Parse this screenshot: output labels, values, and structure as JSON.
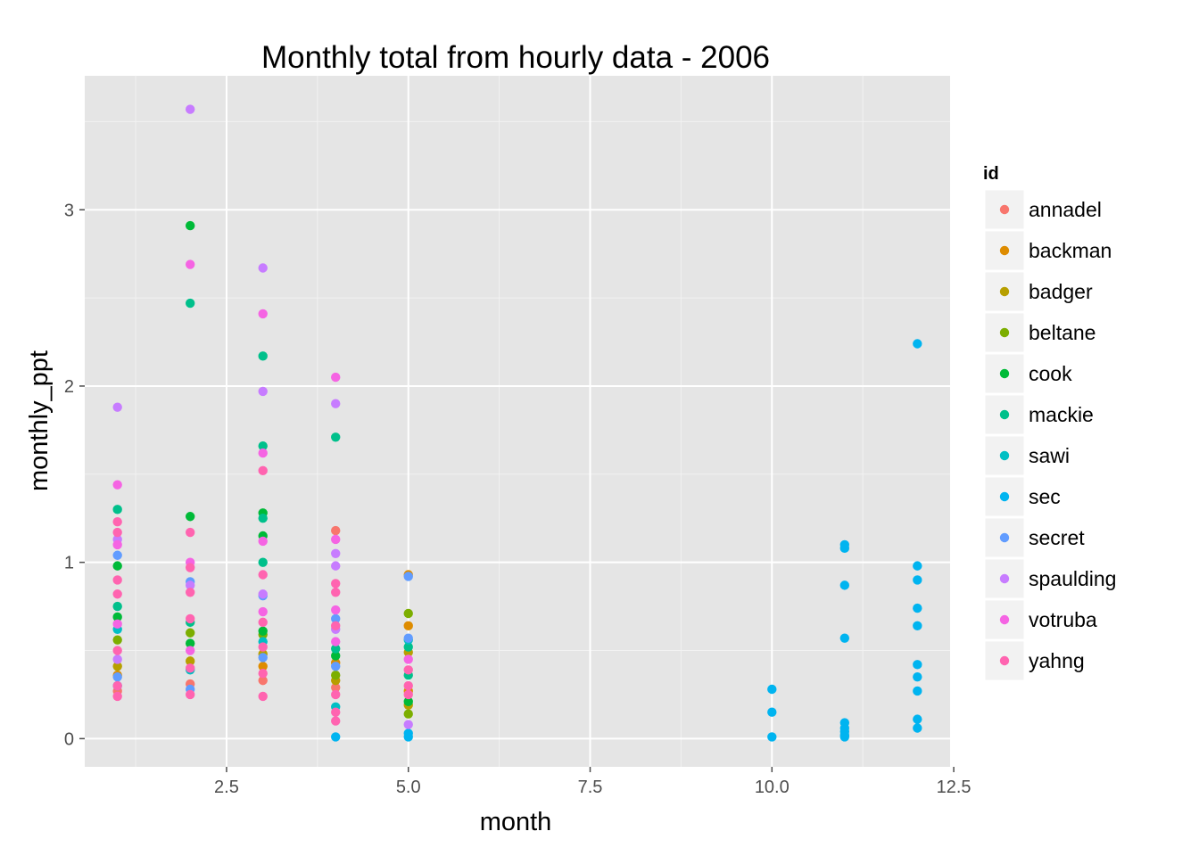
{
  "chart_data": {
    "type": "scatter",
    "title": "Monthly total from hourly data - 2006",
    "xlabel": "month",
    "ylabel": "monthly_ppt",
    "xlim": [
      0.55,
      12.45
    ],
    "ylim": [
      -0.16,
      3.76
    ],
    "x_ticks": [
      2.5,
      5.0,
      7.5,
      10.0,
      12.5
    ],
    "x_tick_labels": [
      "2.5",
      "5.0",
      "7.5",
      "10.0",
      "12.5"
    ],
    "y_ticks": [
      0,
      1,
      2,
      3
    ],
    "y_tick_labels": [
      "0",
      "1",
      "2",
      "3"
    ],
    "grid": true,
    "legend": {
      "title": "id",
      "position": "right"
    },
    "series": [
      {
        "name": "annadel",
        "color": "#F8766D",
        "points": [
          [
            1,
            0.27
          ],
          [
            2,
            0.31
          ],
          [
            3,
            0.33
          ],
          [
            4,
            1.18
          ],
          [
            4,
            0.29
          ]
        ]
      },
      {
        "name": "backman",
        "color": "#DE8C00",
        "points": [
          [
            1,
            0.36
          ],
          [
            3,
            0.41
          ],
          [
            4,
            0.43
          ],
          [
            5,
            0.93
          ],
          [
            5,
            0.64
          ],
          [
            5,
            0.27
          ]
        ]
      },
      {
        "name": "badger",
        "color": "#B79F00",
        "points": [
          [
            1,
            0.41
          ],
          [
            2,
            0.44
          ],
          [
            3,
            0.48
          ],
          [
            4,
            0.33
          ],
          [
            5,
            0.49
          ],
          [
            5,
            0.19
          ]
        ]
      },
      {
        "name": "beltane",
        "color": "#7CAE00",
        "points": [
          [
            1,
            0.56
          ],
          [
            2,
            0.6
          ],
          [
            3,
            0.59
          ],
          [
            4,
            0.36
          ],
          [
            5,
            0.71
          ],
          [
            5,
            0.14
          ]
        ]
      },
      {
        "name": "cook",
        "color": "#00BA38",
        "points": [
          [
            1,
            0.98
          ],
          [
            1,
            0.69
          ],
          [
            2,
            2.91
          ],
          [
            2,
            1.26
          ],
          [
            2,
            0.54
          ],
          [
            3,
            1.28
          ],
          [
            3,
            1.15
          ],
          [
            3,
            0.61
          ],
          [
            4,
            0.47
          ],
          [
            5,
            0.21
          ]
        ]
      },
      {
        "name": "mackie",
        "color": "#00C08B",
        "points": [
          [
            1,
            1.3
          ],
          [
            1,
            0.75
          ],
          [
            2,
            2.47
          ],
          [
            2,
            0.66
          ],
          [
            3,
            2.17
          ],
          [
            3,
            1.66
          ],
          [
            3,
            1.25
          ],
          [
            3,
            1.0
          ],
          [
            4,
            1.71
          ],
          [
            4,
            0.51
          ],
          [
            5,
            0.36
          ],
          [
            5,
            0.52
          ]
        ]
      },
      {
        "name": "sawi",
        "color": "#00BFC4",
        "points": [
          [
            1,
            0.62
          ],
          [
            2,
            0.39
          ],
          [
            3,
            0.55
          ],
          [
            4,
            0.18
          ],
          [
            5,
            0.56
          ]
        ]
      },
      {
        "name": "sec",
        "color": "#00B4F0",
        "points": [
          [
            1,
            0.3
          ],
          [
            4,
            0.01
          ],
          [
            5,
            0.01
          ],
          [
            5,
            0.03
          ],
          [
            10,
            0.28
          ],
          [
            10,
            0.15
          ],
          [
            10,
            0.01
          ],
          [
            11,
            1.1
          ],
          [
            11,
            1.08
          ],
          [
            11,
            0.87
          ],
          [
            11,
            0.57
          ],
          [
            11,
            0.09
          ],
          [
            11,
            0.06
          ],
          [
            11,
            0.04
          ],
          [
            11,
            0.02
          ],
          [
            11,
            0.01
          ],
          [
            12,
            2.24
          ],
          [
            12,
            0.98
          ],
          [
            12,
            0.9
          ],
          [
            12,
            0.74
          ],
          [
            12,
            0.64
          ],
          [
            12,
            0.42
          ],
          [
            12,
            0.35
          ],
          [
            12,
            0.27
          ],
          [
            12,
            0.11
          ],
          [
            12,
            0.06
          ]
        ]
      },
      {
        "name": "secret",
        "color": "#619CFF",
        "points": [
          [
            1,
            1.04
          ],
          [
            1,
            0.35
          ],
          [
            2,
            0.89
          ],
          [
            2,
            0.28
          ],
          [
            3,
            0.81
          ],
          [
            3,
            0.46
          ],
          [
            4,
            0.68
          ],
          [
            4,
            0.41
          ],
          [
            5,
            0.92
          ],
          [
            5,
            0.57
          ]
        ]
      },
      {
        "name": "spaulding",
        "color": "#C77CFF",
        "points": [
          [
            1,
            1.88
          ],
          [
            1,
            1.13
          ],
          [
            1,
            0.45
          ],
          [
            2,
            3.57
          ],
          [
            2,
            0.87
          ],
          [
            3,
            2.67
          ],
          [
            3,
            1.97
          ],
          [
            3,
            0.82
          ],
          [
            4,
            1.9
          ],
          [
            4,
            1.05
          ],
          [
            4,
            0.98
          ],
          [
            4,
            0.62
          ],
          [
            5,
            0.08
          ]
        ]
      },
      {
        "name": "votruba",
        "color": "#F564E3",
        "points": [
          [
            1,
            1.44
          ],
          [
            1,
            1.1
          ],
          [
            1,
            0.65
          ],
          [
            2,
            2.69
          ],
          [
            2,
            1.0
          ],
          [
            2,
            0.5
          ],
          [
            3,
            2.41
          ],
          [
            3,
            1.62
          ],
          [
            3,
            1.12
          ],
          [
            3,
            0.72
          ],
          [
            4,
            2.05
          ],
          [
            4,
            1.13
          ],
          [
            4,
            0.73
          ],
          [
            4,
            0.55
          ],
          [
            5,
            0.45
          ]
        ]
      },
      {
        "name": "yahng",
        "color": "#FF64B0",
        "points": [
          [
            1,
            1.23
          ],
          [
            1,
            1.17
          ],
          [
            1,
            0.9
          ],
          [
            1,
            0.82
          ],
          [
            1,
            0.5
          ],
          [
            1,
            0.3
          ],
          [
            1,
            0.24
          ],
          [
            2,
            1.17
          ],
          [
            2,
            0.97
          ],
          [
            2,
            0.83
          ],
          [
            2,
            0.68
          ],
          [
            2,
            0.4
          ],
          [
            2,
            0.25
          ],
          [
            3,
            1.52
          ],
          [
            3,
            0.93
          ],
          [
            3,
            0.66
          ],
          [
            3,
            0.52
          ],
          [
            3,
            0.37
          ],
          [
            3,
            0.24
          ],
          [
            4,
            0.88
          ],
          [
            4,
            0.83
          ],
          [
            4,
            0.64
          ],
          [
            4,
            0.25
          ],
          [
            4,
            0.15
          ],
          [
            4,
            0.1
          ],
          [
            5,
            0.39
          ],
          [
            5,
            0.3
          ],
          [
            5,
            0.25
          ]
        ]
      }
    ]
  }
}
